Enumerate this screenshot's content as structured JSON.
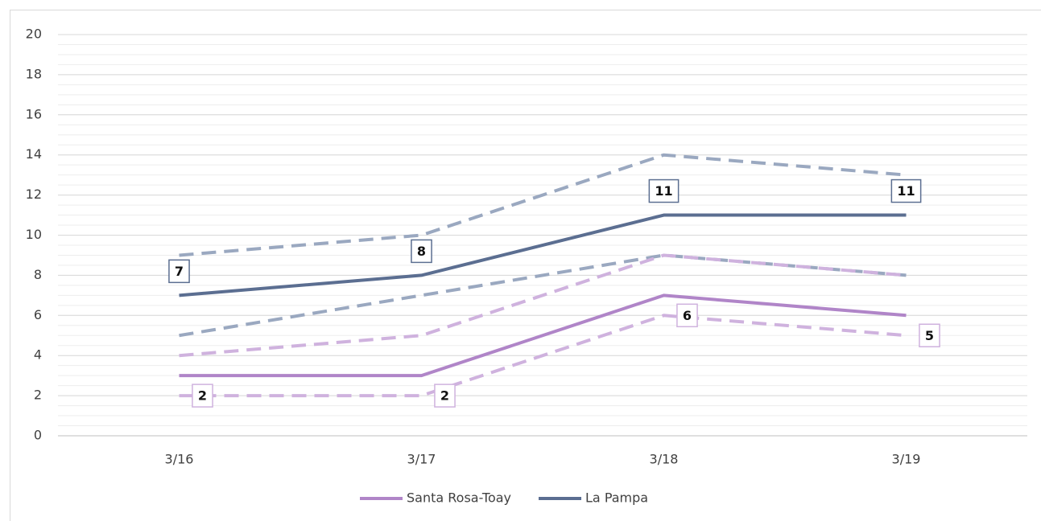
{
  "chart_data": {
    "type": "line",
    "categories": [
      "3/16",
      "3/17",
      "3/18",
      "3/19"
    ],
    "series": [
      {
        "color": "#9aa8c0",
        "dashed": true,
        "values": [
          9,
          10,
          14,
          13
        ]
      },
      {
        "color": "#9aa8c0",
        "dashed": true,
        "values": [
          5,
          7,
          9,
          8
        ]
      },
      {
        "color": "#cfb2de",
        "dashed": true,
        "values": [
          4,
          5,
          9,
          8
        ]
      },
      {
        "color": "#cfb2de",
        "dashed": true,
        "values": [
          2,
          2,
          6,
          5
        ],
        "labels": true,
        "label_position": "right"
      },
      {
        "name": "Santa Rosa-Toay",
        "color": "#b085c8",
        "values": [
          3,
          3,
          7,
          6
        ]
      },
      {
        "name": "La Pampa",
        "color": "#5b6e91",
        "values": [
          7,
          8,
          11,
          11
        ],
        "labels": true,
        "label_position": "above"
      }
    ],
    "ylim": [
      0,
      20
    ],
    "yticks": [
      0,
      2,
      4,
      6,
      8,
      10,
      12,
      14,
      16,
      18,
      20
    ],
    "y_minor_step": 0.5,
    "grid": true,
    "legend": "bottom"
  }
}
